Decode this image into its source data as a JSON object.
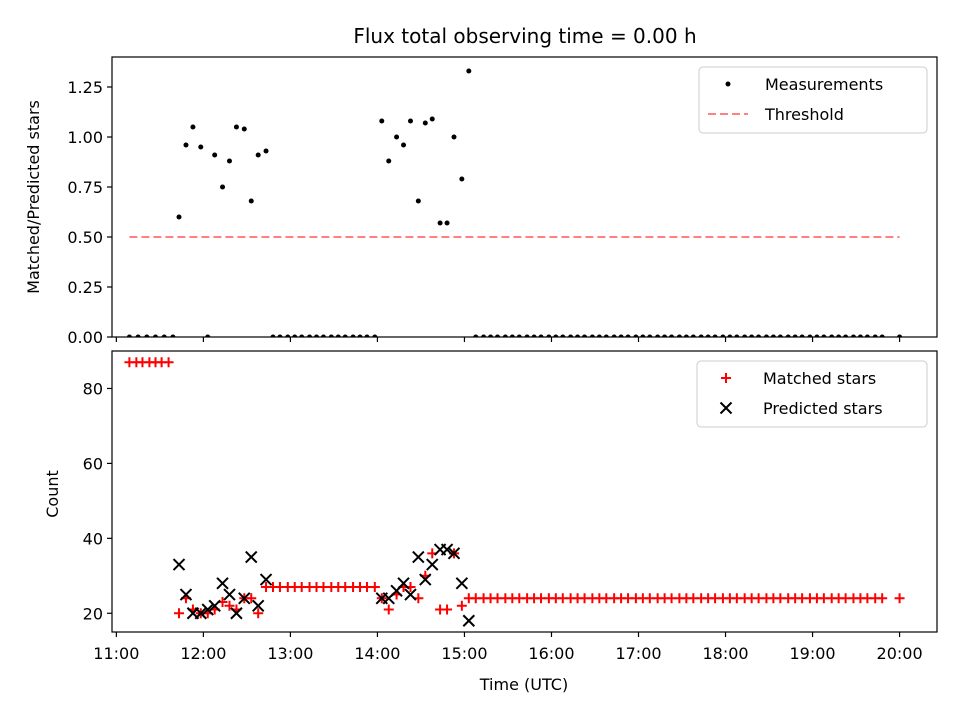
{
  "chart_data": [
    {
      "type": "scatter",
      "title": "Flux total observing time = 0.00 h",
      "xlabel": "",
      "ylabel": "Matched/Predicted stars",
      "xlim": [
        10.95,
        20.43
      ],
      "ylim": [
        0,
        1.4
      ],
      "yticks": [
        0.0,
        0.25,
        0.5,
        0.75,
        1.0,
        1.25
      ],
      "yticklabels": [
        "0.00",
        "0.25",
        "0.50",
        "0.75",
        "1.00",
        "1.25"
      ],
      "grid": false,
      "legend_position": "top-right",
      "series": [
        {
          "name": "Measurements",
          "style": "dot",
          "color": "#000000",
          "x": [
            11.15,
            11.25,
            11.35,
            11.45,
            11.55,
            11.65,
            11.72,
            11.8,
            11.88,
            11.97,
            12.05,
            12.13,
            12.22,
            12.3,
            12.38,
            12.47,
            12.55,
            12.63,
            12.72,
            12.8,
            12.88,
            12.97,
            13.05,
            13.13,
            13.22,
            13.3,
            13.38,
            13.47,
            13.55,
            13.63,
            13.72,
            13.8,
            13.88,
            13.97,
            14.05,
            14.13,
            14.22,
            14.3,
            14.38,
            14.47,
            14.55,
            14.63,
            14.72,
            14.8,
            14.88,
            14.97,
            15.05,
            15.13,
            15.22,
            15.3,
            15.38,
            15.47,
            15.55,
            15.63,
            15.72,
            15.8,
            15.88,
            15.97,
            16.05,
            16.13,
            16.22,
            16.3,
            16.38,
            16.47,
            16.55,
            16.63,
            16.72,
            16.8,
            16.88,
            16.97,
            17.05,
            17.13,
            17.22,
            17.3,
            17.38,
            17.47,
            17.55,
            17.63,
            17.72,
            17.8,
            17.88,
            17.97,
            18.05,
            18.13,
            18.22,
            18.3,
            18.38,
            18.47,
            18.55,
            18.63,
            18.72,
            18.8,
            18.88,
            18.97,
            19.05,
            19.13,
            19.22,
            19.3,
            19.38,
            19.47,
            19.55,
            19.63,
            19.72,
            19.8,
            20.0
          ],
          "y": [
            0,
            0,
            0,
            0,
            0,
            0,
            0.6,
            0.96,
            1.05,
            0.95,
            0,
            0.91,
            0.75,
            0.88,
            1.05,
            1.04,
            0.68,
            0.91,
            0.93,
            0,
            0,
            0,
            0,
            0,
            0,
            0,
            0,
            0,
            0,
            0,
            0,
            0,
            0,
            0,
            1.08,
            0.88,
            1.0,
            0.96,
            1.08,
            0.68,
            1.07,
            1.09,
            0.57,
            0.57,
            1.0,
            0.79,
            1.33,
            0,
            0,
            0,
            0,
            0,
            0,
            0,
            0,
            0,
            0,
            0,
            0,
            0,
            0,
            0,
            0,
            0,
            0,
            0,
            0,
            0,
            0,
            0,
            0,
            0,
            0,
            0,
            0,
            0,
            0,
            0,
            0,
            0,
            0,
            0,
            0,
            0,
            0,
            0,
            0,
            0,
            0,
            0,
            0,
            0,
            0,
            0,
            0,
            0,
            0,
            0,
            0,
            0,
            0,
            0,
            0,
            0,
            0
          ]
        },
        {
          "name": "Threshold",
          "style": "dashed-line",
          "color": "#ff8080",
          "x": [
            11.15,
            20.0
          ],
          "y": [
            0.5,
            0.5
          ]
        }
      ]
    },
    {
      "type": "scatter",
      "title": "",
      "xlabel": "Time (UTC)",
      "ylabel": "Count",
      "xlim": [
        10.95,
        20.43
      ],
      "ylim": [
        15,
        90
      ],
      "yticks": [
        20,
        40,
        60,
        80
      ],
      "yticklabels": [
        "20",
        "40",
        "60",
        "80"
      ],
      "xticks": [
        11,
        12,
        13,
        14,
        15,
        16,
        17,
        18,
        19,
        20
      ],
      "xticklabels": [
        "11:00",
        "12:00",
        "13:00",
        "14:00",
        "15:00",
        "16:00",
        "17:00",
        "18:00",
        "19:00",
        "20:00"
      ],
      "grid": false,
      "legend_position": "top-right",
      "series": [
        {
          "name": "Matched stars",
          "style": "plus",
          "color": "#ff0000",
          "x": [
            11.15,
            11.23,
            11.3,
            11.38,
            11.45,
            11.52,
            11.6,
            11.72,
            11.8,
            11.88,
            11.97,
            12.05,
            12.13,
            12.22,
            12.3,
            12.38,
            12.47,
            12.55,
            12.63,
            12.72,
            12.8,
            12.88,
            12.97,
            13.05,
            13.13,
            13.22,
            13.3,
            13.38,
            13.47,
            13.55,
            13.63,
            13.72,
            13.8,
            13.88,
            13.97,
            14.05,
            14.13,
            14.22,
            14.3,
            14.38,
            14.47,
            14.55,
            14.63,
            14.72,
            14.8,
            14.88,
            14.97,
            15.05,
            15.13,
            15.22,
            15.3,
            15.38,
            15.47,
            15.55,
            15.63,
            15.72,
            15.8,
            15.88,
            15.97,
            16.05,
            16.13,
            16.22,
            16.3,
            16.38,
            16.47,
            16.55,
            16.63,
            16.72,
            16.8,
            16.88,
            16.97,
            17.05,
            17.13,
            17.22,
            17.3,
            17.38,
            17.47,
            17.55,
            17.63,
            17.72,
            17.8,
            17.88,
            17.97,
            18.05,
            18.13,
            18.22,
            18.3,
            18.38,
            18.47,
            18.55,
            18.63,
            18.72,
            18.8,
            18.88,
            18.97,
            19.05,
            19.13,
            19.22,
            19.3,
            19.38,
            19.47,
            19.55,
            19.63,
            19.72,
            19.8,
            20.0
          ],
          "y": [
            87,
            87,
            87,
            87,
            87,
            87,
            87,
            20,
            24,
            21,
            20,
            20,
            21,
            23,
            22,
            21,
            24,
            24,
            20,
            27,
            27,
            27,
            27,
            27,
            27,
            27,
            27,
            27,
            27,
            27,
            27,
            27,
            27,
            27,
            27,
            24,
            21,
            25,
            27,
            27,
            24,
            30,
            36,
            21,
            21,
            36,
            22,
            24,
            24,
            24,
            24,
            24,
            24,
            24,
            24,
            24,
            24,
            24,
            24,
            24,
            24,
            24,
            24,
            24,
            24,
            24,
            24,
            24,
            24,
            24,
            24,
            24,
            24,
            24,
            24,
            24,
            24,
            24,
            24,
            24,
            24,
            24,
            24,
            24,
            24,
            24,
            24,
            24,
            24,
            24,
            24,
            24,
            24,
            24,
            24,
            24,
            24,
            24,
            24,
            24,
            24,
            24,
            24,
            24,
            24,
            24
          ]
        },
        {
          "name": "Predicted stars",
          "style": "x",
          "color": "#000000",
          "x": [
            11.72,
            11.8,
            11.88,
            11.97,
            12.05,
            12.13,
            12.22,
            12.3,
            12.38,
            12.47,
            12.55,
            12.63,
            12.72,
            14.05,
            14.13,
            14.22,
            14.3,
            14.38,
            14.47,
            14.55,
            14.63,
            14.72,
            14.8,
            14.88,
            14.97,
            15.05
          ],
          "y": [
            33,
            25,
            20,
            20,
            21,
            22,
            28,
            25,
            20,
            24,
            35,
            22,
            29,
            24,
            24,
            26,
            28,
            25,
            35,
            29,
            33,
            37,
            37,
            36,
            28,
            18
          ]
        }
      ]
    }
  ]
}
